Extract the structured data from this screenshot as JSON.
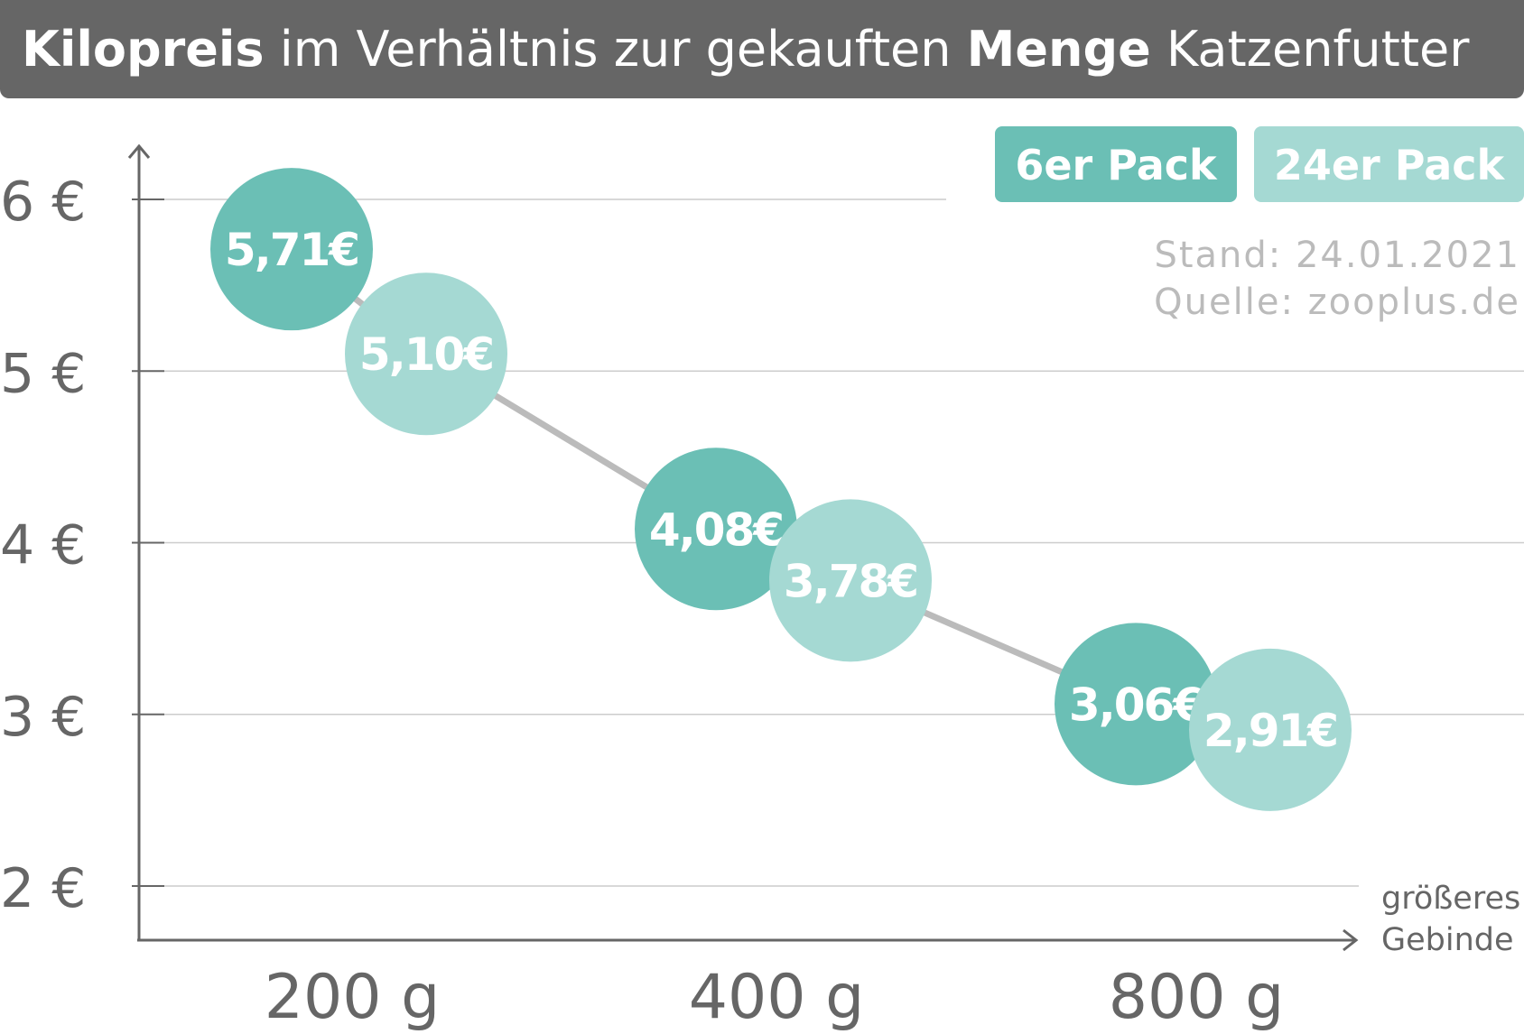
{
  "chart_data": {
    "type": "scatter",
    "title": {
      "bold1": "Kilopreis",
      "mid": " im Verhältnis zur gekauften ",
      "bold2": "Menge",
      "end": " Katzenfutter"
    },
    "categories": [
      "200 g",
      "400 g",
      "800 g"
    ],
    "ylim": [
      2,
      6
    ],
    "y_ticks": [
      "2 €",
      "3 €",
      "4 €",
      "5 €",
      "6 €"
    ],
    "xlabel": [
      "größeres",
      "Gebinde"
    ],
    "series": [
      {
        "name": "6er Pack",
        "color": "#6bbfb5",
        "values": [
          5.71,
          4.08,
          3.06
        ],
        "labels": [
          "5,71€",
          "4,08€",
          "3,06€"
        ]
      },
      {
        "name": "24er Pack",
        "color": "#a5d9d3",
        "values": [
          5.1,
          3.78,
          2.91
        ],
        "labels": [
          "5,10€",
          "3,78€",
          "2,91€"
        ]
      }
    ],
    "grid": true,
    "legend": "top-right",
    "notes": [
      "Stand: 24.01.2021",
      "Quelle: zooplus.de"
    ],
    "colors": {
      "title_bg": "#666666",
      "axis": "#666666",
      "grid": "#cccccc",
      "trend": "#bbbbbb",
      "note": "#bbbbbb"
    }
  }
}
